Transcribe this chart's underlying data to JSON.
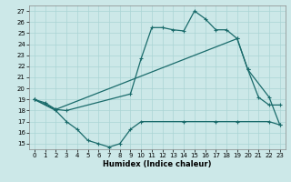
{
  "bg_color": "#cce8e8",
  "line_color": "#1a6b6b",
  "xlabel": "Humidex (Indice chaleur)",
  "xlim": [
    -0.5,
    23.5
  ],
  "ylim": [
    14.5,
    27.5
  ],
  "yticks": [
    15,
    16,
    17,
    18,
    19,
    20,
    21,
    22,
    23,
    24,
    25,
    26,
    27
  ],
  "xticks": [
    0,
    1,
    2,
    3,
    4,
    5,
    6,
    7,
    8,
    9,
    10,
    11,
    12,
    13,
    14,
    15,
    16,
    17,
    18,
    19,
    20,
    21,
    22,
    23
  ],
  "line1_x": [
    0,
    1,
    2,
    3,
    9,
    10,
    11,
    12,
    13,
    14,
    15,
    16,
    17,
    18,
    19,
    20,
    21,
    22,
    23
  ],
  "line1_y": [
    19.0,
    18.7,
    18.1,
    18.0,
    19.5,
    22.7,
    25.5,
    25.5,
    25.3,
    25.2,
    27.0,
    26.3,
    25.3,
    25.3,
    24.5,
    21.7,
    19.2,
    18.5,
    18.5
  ],
  "line2_x": [
    0,
    2,
    19,
    20,
    22,
    23
  ],
  "line2_y": [
    19.0,
    18.1,
    24.5,
    21.7,
    19.2,
    16.7
  ],
  "line3_x": [
    0,
    2,
    3,
    4,
    5,
    6,
    7,
    8,
    9,
    10,
    14,
    17,
    19,
    22,
    23
  ],
  "line3_y": [
    19.0,
    18.0,
    17.0,
    16.3,
    15.3,
    15.0,
    14.7,
    15.0,
    16.3,
    17.0,
    17.0,
    17.0,
    17.0,
    17.0,
    16.7
  ],
  "grid_color": "#aad4d4",
  "grid_linewidth": 0.5,
  "tick_fontsize": 5,
  "xlabel_fontsize": 6,
  "linewidth": 0.9,
  "markersize": 3
}
